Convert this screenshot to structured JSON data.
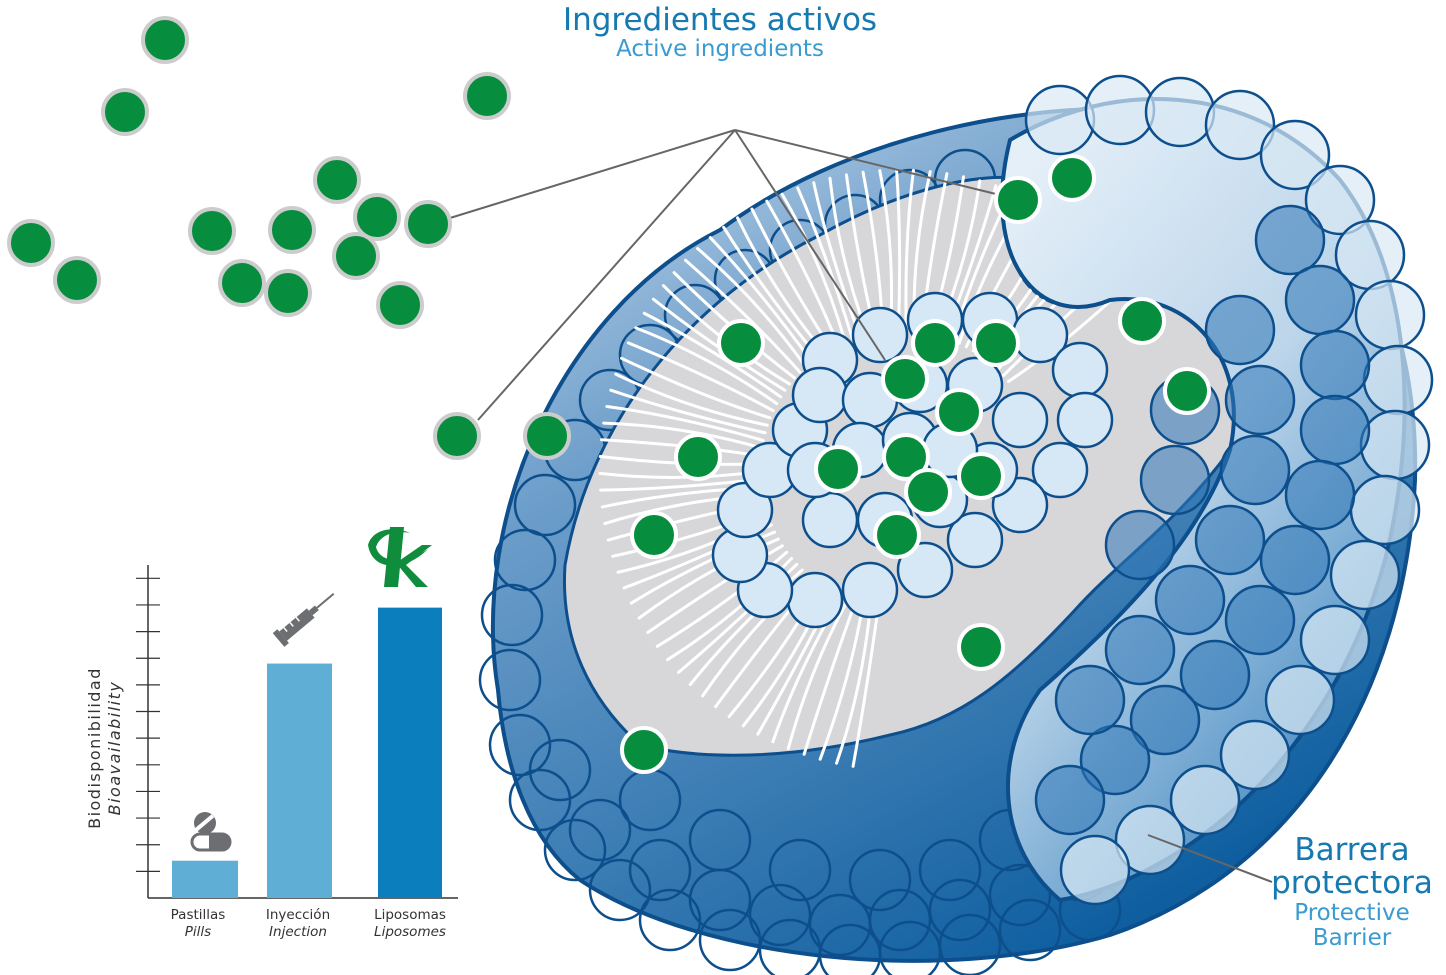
{
  "labels": {
    "active_ingredients": {
      "es": "Ingredientes activos",
      "en": "Active ingredients"
    },
    "protective_barrier": {
      "es": "Barrera protectora",
      "en": "Protective Barrier"
    }
  },
  "colors": {
    "ingredient_green": "#068d3e",
    "liposome_dark_blue": "#0f5fa0",
    "liposome_light_blue": "#d6e8f5",
    "bar_light": "#5eaed5",
    "bar_dark": "#0b7fbe",
    "lipid_tail": "#d4d4d6"
  },
  "icons": [
    "pill-capsule-icon",
    "syringe-icon",
    "k-brand-logo-icon"
  ],
  "chart_data": {
    "type": "bar",
    "categories": [
      {
        "es": "Pastillas",
        "en": "Pills"
      },
      {
        "es": "Inyección",
        "en": "Injection"
      },
      {
        "es": "Liposomas",
        "en": "Liposomes"
      }
    ],
    "values": [
      1.4,
      8.8,
      10.9
    ],
    "ylabel": {
      "es": "Biodisponibilidad",
      "en": "Bioavailability"
    },
    "ylim": [
      0,
      12.5
    ],
    "yticks": 12,
    "bar_colors": [
      "#5eaed5",
      "#5eaed5",
      "#0b7fbe"
    ],
    "grid": false
  }
}
